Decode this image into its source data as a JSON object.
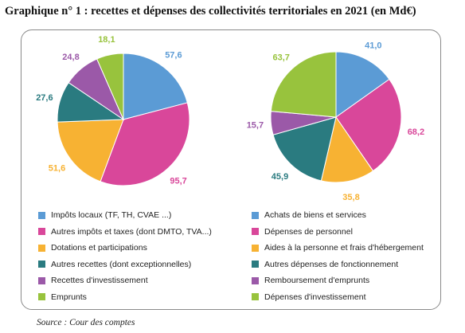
{
  "title": "Graphique n° 1 : recettes et dépenses des collectivités territoriales en 2021 (en Md€)",
  "source": "Source : Cour des comptes",
  "chart_data": [
    {
      "type": "pie",
      "name": "recettes",
      "categories": [
        "Impôts locaux (TF, TH, CVAE ...)",
        "Autres impôts et taxes (dont DMTO, TVA...)",
        "Dotations et participations",
        "Autres recettes (dont exceptionnelles)",
        "Recettes d'investissement",
        "Emprunts"
      ],
      "values": [
        57.6,
        95.7,
        51.6,
        27.6,
        24.8,
        18.1
      ],
      "labels": [
        "57,6",
        "95,7",
        "51,6",
        "27,6",
        "24,8",
        "18,1"
      ],
      "colors": [
        "#5b9bd5",
        "#d9479a",
        "#f7b233",
        "#2a7b80",
        "#9b59a8",
        "#98c33d"
      ]
    },
    {
      "type": "pie",
      "name": "dépenses",
      "categories": [
        "Achats de biens et services",
        "Dépenses de personnel",
        "Aides à la personne et frais d'hébergement",
        "Autres dépenses de fonctionnement",
        "Remboursement d'emprunts",
        "Dépenses d'investissement"
      ],
      "values": [
        41.0,
        68.2,
        35.8,
        45.9,
        15.7,
        63.7
      ],
      "labels": [
        "41,0",
        "68,2",
        "35,8",
        "45,9",
        "15,7",
        "63,7"
      ],
      "colors": [
        "#5b9bd5",
        "#d9479a",
        "#f7b233",
        "#2a7b80",
        "#9b59a8",
        "#98c33d"
      ]
    }
  ],
  "legend": {
    "left": [
      {
        "label": "Impôts locaux (TF, TH, CVAE ...)",
        "color": "#5b9bd5"
      },
      {
        "label": "Autres impôts et taxes (dont DMTO, TVA...)",
        "color": "#d9479a"
      },
      {
        "label": "Dotations et participations",
        "color": "#f7b233"
      },
      {
        "label": "Autres recettes (dont exceptionnelles)",
        "color": "#2a7b80"
      },
      {
        "label": "Recettes d'investissement",
        "color": "#9b59a8"
      },
      {
        "label": "Emprunts",
        "color": "#98c33d"
      }
    ],
    "right": [
      {
        "label": "Achats de biens et services",
        "color": "#5b9bd5"
      },
      {
        "label": "Dépenses de personnel",
        "color": "#d9479a"
      },
      {
        "label": "Aides à la personne et frais d'hébergement",
        "color": "#f7b233"
      },
      {
        "label": "Autres dépenses de fonctionnement",
        "color": "#2a7b80"
      },
      {
        "label": "Remboursement d'emprunts",
        "color": "#9b59a8"
      },
      {
        "label": "Dépenses d'investissement",
        "color": "#98c33d"
      }
    ]
  }
}
